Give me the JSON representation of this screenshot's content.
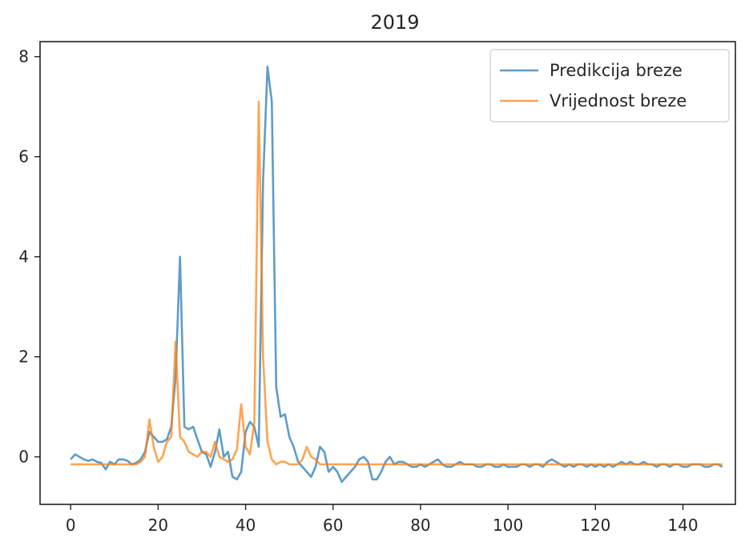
{
  "chart_data": {
    "type": "line",
    "title": "2019",
    "xlabel": "",
    "ylabel": "",
    "xlim": [
      -7,
      152
    ],
    "ylim": [
      -0.95,
      8.3
    ],
    "xticks": [
      0,
      20,
      40,
      60,
      80,
      100,
      120,
      140
    ],
    "yticks": [
      0,
      2,
      4,
      6,
      8
    ],
    "grid": false,
    "legend": "top-right",
    "series": [
      {
        "name": "Predikcija breze",
        "color": "#1f77b4",
        "x": [
          0,
          1,
          2,
          3,
          4,
          5,
          6,
          7,
          8,
          9,
          10,
          11,
          12,
          13,
          14,
          15,
          16,
          17,
          18,
          19,
          20,
          21,
          22,
          23,
          24,
          25,
          26,
          27,
          28,
          29,
          30,
          31,
          32,
          33,
          34,
          35,
          36,
          37,
          38,
          39,
          40,
          41,
          42,
          43,
          44,
          45,
          46,
          47,
          48,
          49,
          50,
          51,
          52,
          53,
          54,
          55,
          56,
          57,
          58,
          59,
          60,
          61,
          62,
          63,
          64,
          65,
          66,
          67,
          68,
          69,
          70,
          71,
          72,
          73,
          74,
          75,
          76,
          77,
          78,
          79,
          80,
          81,
          82,
          83,
          84,
          85,
          86,
          87,
          88,
          89,
          90,
          91,
          92,
          93,
          94,
          95,
          96,
          97,
          98,
          99,
          100,
          101,
          102,
          103,
          104,
          105,
          106,
          107,
          108,
          109,
          110,
          111,
          112,
          113,
          114,
          115,
          116,
          117,
          118,
          119,
          120,
          121,
          122,
          123,
          124,
          125,
          126,
          127,
          128,
          129,
          130,
          131,
          132,
          133,
          134,
          135,
          136,
          137,
          138,
          139,
          140,
          141,
          142,
          143,
          144,
          145,
          146,
          147,
          148,
          149
        ],
        "y": [
          -0.05,
          0.05,
          0.0,
          -0.05,
          -0.08,
          -0.05,
          -0.1,
          -0.12,
          -0.25,
          -0.1,
          -0.15,
          -0.05,
          -0.05,
          -0.08,
          -0.15,
          -0.12,
          -0.05,
          0.1,
          0.5,
          0.4,
          0.3,
          0.3,
          0.35,
          0.6,
          1.6,
          4.0,
          0.6,
          0.55,
          0.6,
          0.35,
          0.1,
          0.05,
          -0.2,
          0.1,
          0.55,
          0.0,
          0.1,
          -0.4,
          -0.45,
          -0.3,
          0.5,
          0.7,
          0.6,
          0.2,
          5.5,
          7.8,
          7.1,
          1.4,
          0.8,
          0.85,
          0.4,
          0.2,
          -0.1,
          -0.2,
          -0.3,
          -0.4,
          -0.2,
          0.2,
          0.1,
          -0.3,
          -0.2,
          -0.3,
          -0.5,
          -0.4,
          -0.3,
          -0.2,
          -0.05,
          0.0,
          -0.1,
          -0.45,
          -0.45,
          -0.3,
          -0.1,
          0.0,
          -0.15,
          -0.1,
          -0.1,
          -0.15,
          -0.2,
          -0.2,
          -0.15,
          -0.2,
          -0.15,
          -0.1,
          -0.05,
          -0.15,
          -0.2,
          -0.2,
          -0.15,
          -0.1,
          -0.15,
          -0.15,
          -0.15,
          -0.2,
          -0.2,
          -0.15,
          -0.15,
          -0.2,
          -0.2,
          -0.15,
          -0.2,
          -0.2,
          -0.2,
          -0.15,
          -0.15,
          -0.2,
          -0.15,
          -0.15,
          -0.2,
          -0.1,
          -0.05,
          -0.1,
          -0.15,
          -0.2,
          -0.15,
          -0.2,
          -0.15,
          -0.15,
          -0.2,
          -0.15,
          -0.2,
          -0.15,
          -0.2,
          -0.15,
          -0.2,
          -0.15,
          -0.1,
          -0.15,
          -0.1,
          -0.15,
          -0.15,
          -0.1,
          -0.15,
          -0.15,
          -0.2,
          -0.15,
          -0.15,
          -0.2,
          -0.15,
          -0.15,
          -0.2,
          -0.2,
          -0.15,
          -0.15,
          -0.15,
          -0.2,
          -0.2,
          -0.15,
          -0.15,
          -0.2
        ]
      },
      {
        "name": "Vrijednost breze",
        "color": "#ff7f0e",
        "x": [
          0,
          1,
          2,
          3,
          4,
          5,
          6,
          7,
          8,
          9,
          10,
          11,
          12,
          13,
          14,
          15,
          16,
          17,
          18,
          19,
          20,
          21,
          22,
          23,
          24,
          25,
          26,
          27,
          28,
          29,
          30,
          31,
          32,
          33,
          34,
          35,
          36,
          37,
          38,
          39,
          40,
          41,
          42,
          43,
          44,
          45,
          46,
          47,
          48,
          49,
          50,
          51,
          52,
          53,
          54,
          55,
          56,
          57,
          58,
          59,
          60,
          61,
          62,
          63,
          64,
          65,
          66,
          67,
          68,
          69,
          70,
          71,
          72,
          73,
          74,
          75,
          76,
          77,
          78,
          79,
          80,
          81,
          82,
          83,
          84,
          85,
          86,
          87,
          88,
          89,
          90,
          91,
          92,
          93,
          94,
          95,
          96,
          97,
          98,
          99,
          100,
          101,
          102,
          103,
          104,
          105,
          106,
          107,
          108,
          109,
          110,
          111,
          112,
          113,
          114,
          115,
          116,
          117,
          118,
          119,
          120,
          121,
          122,
          123,
          124,
          125,
          126,
          127,
          128,
          129,
          130,
          131,
          132,
          133,
          134,
          135,
          136,
          137,
          138,
          139,
          140,
          141,
          142,
          143,
          144,
          145,
          146,
          147,
          148,
          149
        ],
        "y": [
          -0.15,
          -0.15,
          -0.15,
          -0.15,
          -0.15,
          -0.15,
          -0.15,
          -0.15,
          -0.15,
          -0.15,
          -0.15,
          -0.15,
          -0.15,
          -0.15,
          -0.15,
          -0.15,
          -0.1,
          0.0,
          0.75,
          0.2,
          -0.1,
          0.0,
          0.3,
          0.4,
          2.3,
          0.4,
          0.3,
          0.1,
          0.05,
          0.0,
          0.1,
          0.1,
          0.0,
          0.3,
          0.0,
          -0.05,
          -0.1,
          -0.05,
          0.15,
          1.05,
          0.2,
          0.05,
          0.7,
          7.1,
          2.0,
          0.3,
          -0.05,
          -0.15,
          -0.1,
          -0.1,
          -0.15,
          -0.15,
          -0.15,
          -0.05,
          0.2,
          0.0,
          -0.05,
          -0.15,
          -0.15,
          -0.15,
          -0.15,
          -0.15,
          -0.15,
          -0.15,
          -0.15,
          -0.15,
          -0.15,
          -0.15,
          -0.15,
          -0.15,
          -0.15,
          -0.15,
          -0.15,
          -0.15,
          -0.15,
          -0.15,
          -0.15,
          -0.15,
          -0.15,
          -0.15,
          -0.15,
          -0.15,
          -0.15,
          -0.15,
          -0.15,
          -0.15,
          -0.15,
          -0.15,
          -0.15,
          -0.15,
          -0.15,
          -0.15,
          -0.15,
          -0.15,
          -0.15,
          -0.15,
          -0.15,
          -0.15,
          -0.15,
          -0.15,
          -0.15,
          -0.15,
          -0.15,
          -0.15,
          -0.15,
          -0.15,
          -0.15,
          -0.15,
          -0.15,
          -0.15,
          -0.15,
          -0.15,
          -0.15,
          -0.15,
          -0.15,
          -0.15,
          -0.15,
          -0.15,
          -0.15,
          -0.15,
          -0.15,
          -0.15,
          -0.15,
          -0.15,
          -0.15,
          -0.15,
          -0.15,
          -0.15,
          -0.15,
          -0.15,
          -0.15,
          -0.15,
          -0.15,
          -0.15,
          -0.15,
          -0.15,
          -0.15,
          -0.15,
          -0.15,
          -0.15,
          -0.15,
          -0.15,
          -0.15,
          -0.15,
          -0.15,
          -0.15,
          -0.15,
          -0.15,
          -0.15,
          -0.15
        ]
      }
    ]
  }
}
